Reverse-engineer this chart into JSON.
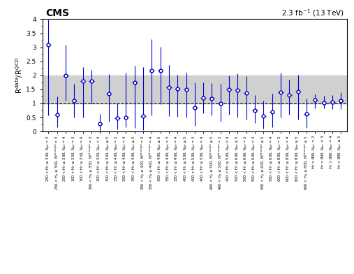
{
  "title_left": "CMS",
  "title_right": "2.3 fb$^{-1}$ (13 TeV)",
  "ylabel": "R$^{data}$/R$^{QCD}$",
  "ylim": [
    0,
    4
  ],
  "band_low": 1.0,
  "band_high": 2.0,
  "dashed_line": 1.0,
  "background_color": "#ffffff",
  "band_color": "#d0d0d0",
  "point_color": "#0000cc",
  "njet_row": [
    "= 3",
    "= 3",
    "= 4",
    "= 3",
    "= 4",
    "= 3",
    "= 4",
    "≤ 5",
    "= 3",
    "= 4",
    "≤ 5",
    "= 3",
    "= 4",
    "≤ 5",
    "= 3",
    "= 4",
    "≤ 5",
    "= 3",
    "= 4",
    "≤ 5",
    "= 3",
    "= 4",
    "≤ 5",
    "= 3",
    "= 4",
    "≤ 5",
    "= 4",
    "= 3",
    "= 4",
    "≤ 5",
    "≤ 5",
    "= 2",
    "= 3",
    "= 4",
    "≤ 5"
  ],
  "njet_type": [
    "N$_{jet}$",
    "N$^{jet,asym}$",
    "N$_{jet}$",
    "N$_{jet}$",
    "N$_{jet}$",
    "N$^{jet,asym}$",
    "N$_{jet}$",
    "N$_{jet}$",
    "N$_{jet}$",
    "N$_{jet}$",
    "N$_{jet}$",
    "N$^{jet,asym}$",
    "N$^{jet,asym}$",
    "N$_{jet}$",
    "N$_{jet}$",
    "N$_{jet}$",
    "N$_{jet}$",
    "N$_{jet}$",
    "N$_{jet}$",
    "N$^{jet,asym}$",
    "N$^{jet,asym}$",
    "N$_{jet}$",
    "N$_{jet}$",
    "N$_{jet}$",
    "N$_{jet}$",
    "N$^{jet,asym}$",
    "N$_{jet}$",
    "N$_{jet}$",
    "N$_{jet}$",
    "N$_{jet}$",
    "N$^{jet,asym}$",
    "N$_{jet}$",
    "N$_{jet}$",
    "N$_{jet}$",
    "N$_{jet}$"
  ],
  "ht_ranges": [
    "250 < H$_T$ ≤ 300,",
    "250 < H$_T$ ≤ 300,",
    "250 < H$_T$ ≤ 300,",
    "300 < H$_T$ ≤ 350,",
    "300 < H$_T$ ≤ 350,",
    "300 < H$_T$ ≤ 350,",
    "300 < H$_T$ ≤ 350,",
    "300 < H$_T$ ≤ 350,",
    "350 < H$_T$ ≤ 400,",
    "350 < H$_T$ ≤ 400,",
    "350 < H$_T$ ≤ 400,",
    "350 < H$_T$ ≤ 400,",
    "350 < H$_T$ ≤ 400,",
    "350 < H$_T$ ≤ 400,",
    "350 < H$_T$ ≤ 400,",
    "350 < H$_T$ ≤ 400,",
    "400 < H$_T$ ≤ 500,",
    "400 < H$_T$ ≤ 500,",
    "400 < H$_T$ ≤ 500,",
    "400 < H$_T$ ≤ 500,",
    "400 < H$_T$ ≤ 500,",
    "400 < H$_T$ ≤ 500,",
    "500 < H$_T$ ≤ 600,",
    "500 < H$_T$ ≤ 600,",
    "500 < H$_T$ ≤ 600,",
    "500 < H$_T$ ≤ 600,",
    "500 < H$_T$ ≤ 600,",
    "600 < H$_T$ ≤ 800,",
    "600 < H$_T$ ≤ 800,",
    "600 < H$_T$ ≤ 800,",
    "600 < H$_T$ ≤ 800,",
    "H$_T$ > 800,",
    "H$_T$ > 800,",
    "H$_T$ > 800,",
    "H$_T$ > 800,"
  ],
  "values": [
    3.08,
    0.6,
    2.0,
    1.1,
    1.8,
    1.8,
    0.28,
    1.35,
    0.48,
    0.5,
    1.74,
    0.55,
    2.18,
    2.17,
    1.56,
    1.52,
    1.49,
    0.85,
    1.2,
    1.18,
    1.0,
    1.5,
    1.47,
    1.37,
    0.75,
    0.55,
    0.7,
    1.4,
    1.3,
    1.43,
    0.62,
    1.12,
    1.02,
    1.05,
    1.1
  ],
  "yerr_low": [
    2.5,
    0.45,
    0.9,
    0.6,
    1.3,
    0.8,
    0.25,
    1.0,
    0.4,
    0.35,
    1.6,
    0.5,
    1.6,
    1.2,
    1.0,
    1.0,
    1.0,
    0.65,
    0.55,
    0.6,
    0.65,
    0.9,
    0.97,
    0.95,
    0.45,
    0.45,
    0.55,
    0.9,
    0.7,
    1.0,
    0.5,
    0.3,
    0.2,
    0.25,
    0.3
  ],
  "yerr_high": [
    0.9,
    0.65,
    1.1,
    0.6,
    0.5,
    0.4,
    0.35,
    0.7,
    0.55,
    1.6,
    0.6,
    1.75,
    1.1,
    0.85,
    0.8,
    0.5,
    0.6,
    0.9,
    0.55,
    0.55,
    0.7,
    0.5,
    0.6,
    0.6,
    0.55,
    0.55,
    0.65,
    0.7,
    0.55,
    0.6,
    0.55,
    0.2,
    0.25,
    0.25,
    0.3
  ],
  "xerr": 0.3
}
